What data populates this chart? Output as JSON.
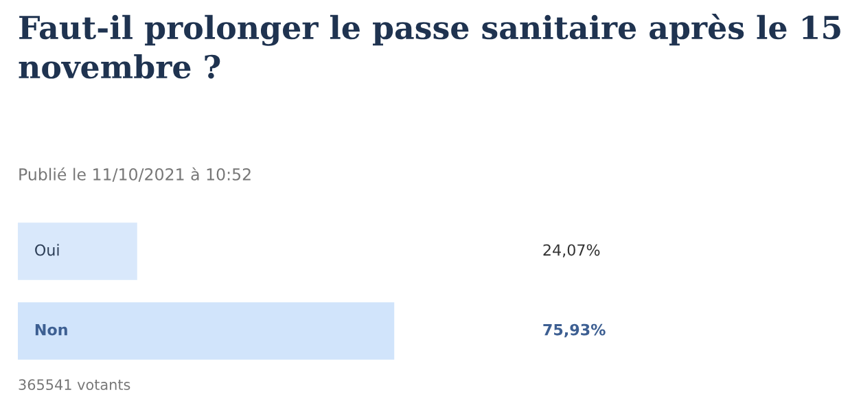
{
  "chart_data": {
    "type": "bar",
    "orientation": "horizontal",
    "title": "Faut-il prolonger le passe sanitaire après le 15 novembre ?",
    "subtitle": "Publié le 11/10/2021 à 10:52",
    "categories": [
      "Oui",
      "Non"
    ],
    "values": [
      24.07,
      75.93
    ],
    "colors": [
      "#d9e8fb",
      "#d1e4fb"
    ],
    "value_labels": [
      "24,07%",
      "75,93%"
    ],
    "annotations": [
      "365541 votants"
    ]
  }
}
